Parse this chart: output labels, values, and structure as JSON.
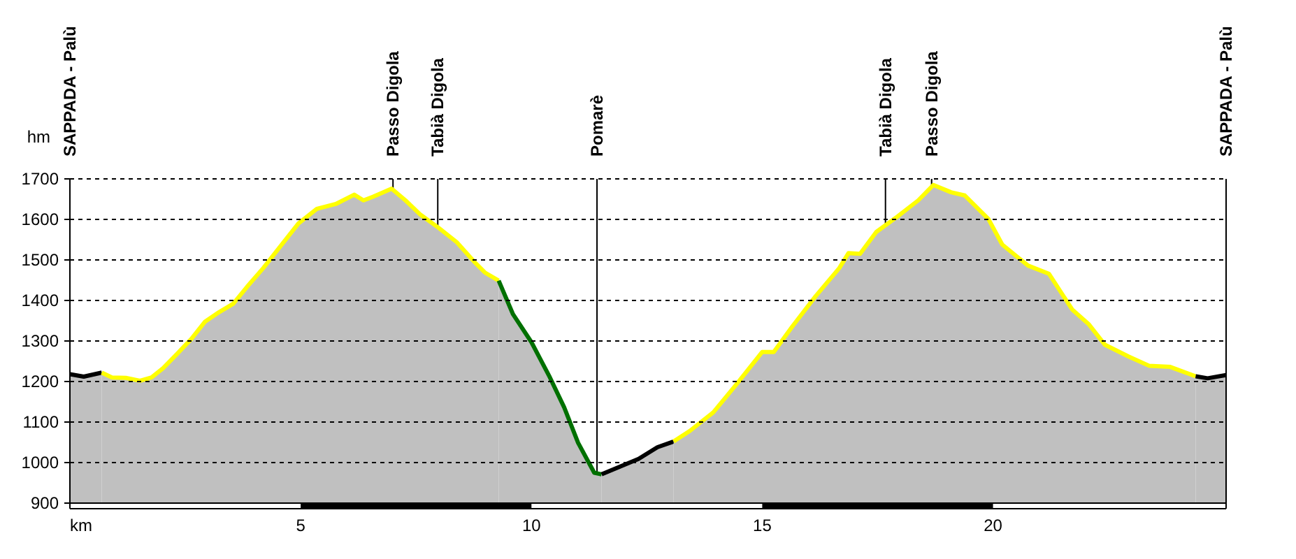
{
  "chart_data": {
    "type": "area",
    "ylabel": "hm",
    "xlim": [
      0,
      25.05
    ],
    "ylim": [
      900,
      1700
    ],
    "xticks": [
      {
        "value": 0,
        "label": "km"
      },
      5,
      10,
      15,
      20
    ],
    "yticks": [
      900,
      1000,
      1100,
      1200,
      1300,
      1400,
      1500,
      1600,
      1700
    ],
    "grid": "y",
    "ref_lines": [
      {
        "axis": "x",
        "value": 0,
        "label": "SAPPADA - Palù"
      },
      {
        "axis": "x",
        "value": 7.0,
        "label": "Passo Digola"
      },
      {
        "axis": "x",
        "value": 7.97,
        "label": "Tabià Digola"
      },
      {
        "axis": "x",
        "value": 11.42,
        "label": "Pomarè"
      },
      {
        "axis": "x",
        "value": 17.67,
        "label": "Tabià Digola"
      },
      {
        "axis": "x",
        "value": 18.67,
        "label": "Passo Digola"
      },
      {
        "axis": "x",
        "value": 25.05,
        "label": "SAPPADA - Palù"
      }
    ],
    "series": [
      {
        "color": "#000000",
        "x": [
          0,
          0.3,
          0.69
        ],
        "values": [
          1218,
          1212,
          1222
        ]
      },
      {
        "color": "#ffff00",
        "x": [
          0.69,
          0.91,
          1.21,
          1.52,
          1.77,
          2.02,
          2.32,
          2.63,
          2.93,
          3.23,
          3.54,
          3.84,
          4.19,
          4.55,
          4.95,
          5.35,
          5.76,
          6.16,
          6.36,
          6.57,
          6.97,
          7.27,
          7.58,
          7.98,
          8.38,
          8.79,
          8.99,
          9.29
        ],
        "values": [
          1222,
          1210,
          1209,
          1202,
          1210,
          1233,
          1268,
          1305,
          1348,
          1371,
          1392,
          1434,
          1480,
          1532,
          1590,
          1626,
          1638,
          1661,
          1647,
          1656,
          1676,
          1647,
          1613,
          1580,
          1544,
          1492,
          1469,
          1449
        ]
      },
      {
        "color": "#007000",
        "x": [
          9.29,
          9.6,
          10.0,
          10.4,
          10.71,
          11.01,
          11.36,
          11.52
        ],
        "values": [
          1449,
          1366,
          1297,
          1210,
          1136,
          1049,
          975,
          971
        ]
      },
      {
        "color": "#000000",
        "x": [
          11.52,
          11.92,
          12.32,
          12.73,
          13.08
        ],
        "values": [
          971,
          990,
          1009,
          1038,
          1052
        ]
      },
      {
        "color": "#ffff00",
        "x": [
          13.08,
          13.43,
          13.94,
          14.44,
          15.0,
          15.25,
          15.66,
          16.16,
          16.67,
          16.87,
          17.12,
          17.47,
          17.93,
          18.38,
          18.71,
          19.09,
          19.39,
          19.9,
          20.2,
          20.51,
          20.76,
          21.21,
          21.72,
          22.07,
          22.42,
          22.93,
          23.38,
          23.84,
          24.39
        ],
        "values": [
          1052,
          1078,
          1124,
          1193,
          1273,
          1273,
          1337,
          1411,
          1480,
          1517,
          1515,
          1569,
          1607,
          1647,
          1685,
          1667,
          1659,
          1601,
          1538,
          1509,
          1486,
          1466,
          1377,
          1342,
          1291,
          1262,
          1239,
          1236,
          1213
        ]
      },
      {
        "color": "#000000",
        "x": [
          24.39,
          24.65,
          25.05
        ],
        "values": [
          1213,
          1208,
          1216
        ]
      }
    ]
  }
}
